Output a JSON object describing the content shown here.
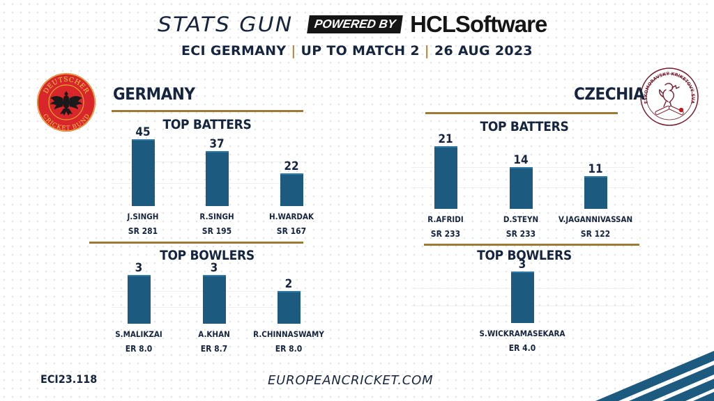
{
  "header": {
    "stats_gun": "STATS GUN",
    "powered_by": "POWERED BY",
    "hcl": "HCLSoftware",
    "subtitle_part1": "ECI GERMANY",
    "subtitle_sep1": " | ",
    "subtitle_part2": "UP TO MATCH 2",
    "subtitle_sep2": " | ",
    "subtitle_part3": "26 AUG 2023"
  },
  "logos": {
    "germany_top_text": "DEUTSCHER",
    "germany_bottom_text": "CRICKET BUND",
    "czechia_text": "ČESKOMORAVSKÝ KRIKETOVÝ SVAZ"
  },
  "colors": {
    "bar": "#1d5a80",
    "navy": "#16253f",
    "gold": "#a07a35",
    "accent": "#1d5a80"
  },
  "chart_data": [
    {
      "type": "bar",
      "team": "GERMANY",
      "title": "TOP BATTERS",
      "categories": [
        "J.SINGH",
        "R.SINGH",
        "H.WARDAK"
      ],
      "values": [
        45,
        37,
        22
      ],
      "secondary": [
        "SR 281",
        "SR 195",
        "SR 167"
      ],
      "ylim": [
        0,
        45
      ]
    },
    {
      "type": "bar",
      "team": "GERMANY",
      "title": "TOP BOWLERS",
      "categories": [
        "S.MALIKZAI",
        "A.KHAN",
        "R.CHINNASWAMY"
      ],
      "values": [
        3,
        3,
        2
      ],
      "secondary": [
        "ER 8.0",
        "ER 8.7",
        "ER 8.0"
      ],
      "ylim": [
        0,
        3
      ]
    },
    {
      "type": "bar",
      "team": "CZECHIA",
      "title": "TOP BATTERS",
      "categories": [
        "R.AFRIDI",
        "D.STEYN",
        "V.JAGANNIVASSAN"
      ],
      "values": [
        21,
        14,
        11
      ],
      "secondary": [
        "SR 233",
        "SR 233",
        "SR 122"
      ],
      "ylim": [
        0,
        21
      ]
    },
    {
      "type": "bar",
      "team": "CZECHIA",
      "title": "TOP BOWLERS",
      "categories": [
        "S.WICKRAMASEKARA"
      ],
      "values": [
        3
      ],
      "secondary": [
        "ER 4.0"
      ],
      "ylim": [
        0,
        3
      ]
    }
  ],
  "footer": {
    "code": "ECI23.118",
    "site": "EUROPEANCRICKET.COM"
  }
}
